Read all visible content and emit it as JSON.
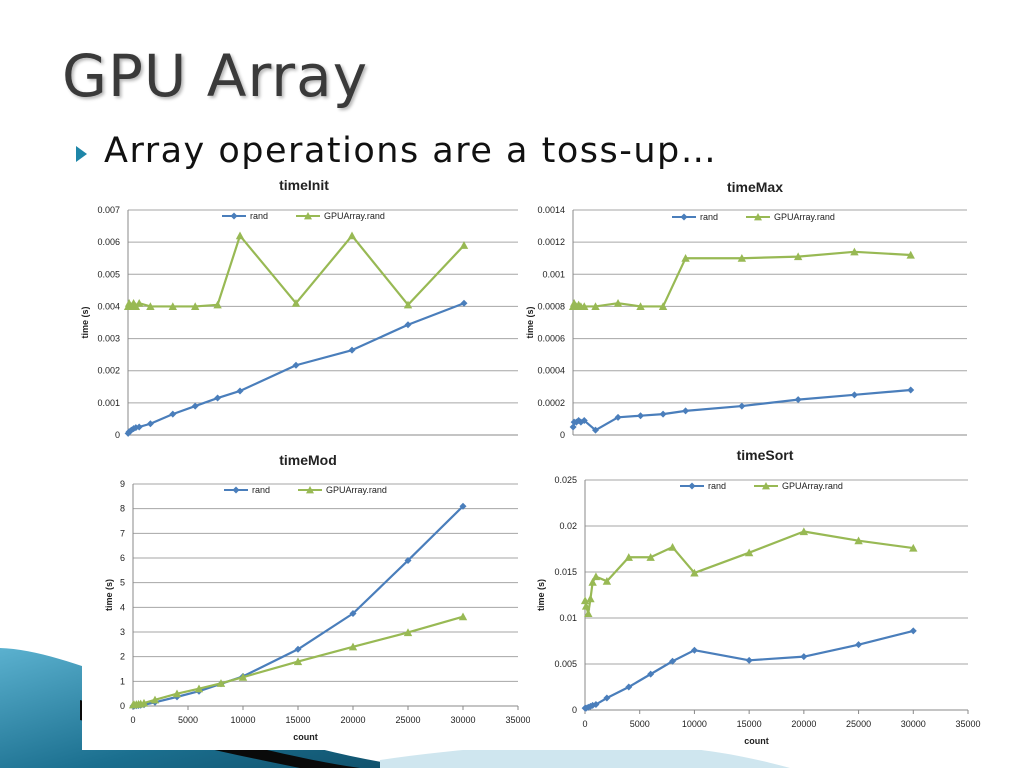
{
  "slide": {
    "title": "GPU Array",
    "bullet": "Array operations are a toss-up…"
  },
  "colors": {
    "rand": "#4a7ebb",
    "gpu": "#98b954",
    "grid": "#a6a6a6",
    "bullet": "#1e86a8",
    "decor_dark": "#10516b",
    "decor_light": "#5bb1cf"
  },
  "chart_data": [
    {
      "type": "line",
      "title": "timeInit",
      "xlabel": "",
      "ylabel": "time (s)",
      "ylim": [
        0,
        0.007
      ],
      "yticks": [
        "0",
        "0.001",
        "0.002",
        "0.003",
        "0.004",
        "0.005",
        "0.006",
        "0.007"
      ],
      "xlim": [
        0,
        35000
      ],
      "xticks": [],
      "grid": true,
      "legend": "top",
      "series": [
        {
          "name": "rand",
          "marker": "diamond",
          "x": [
            10,
            100,
            300,
            500,
            700,
            1000,
            2000,
            4000,
            6000,
            8000,
            10000,
            15000,
            20000,
            25000,
            30000
          ],
          "y": [
            5e-05,
            0.0001,
            0.00015,
            0.0002,
            0.00023,
            0.00025,
            0.00035,
            0.00065,
            0.0009,
            0.00115,
            0.00137,
            0.00217,
            0.00264,
            0.00343,
            0.0041
          ]
        },
        {
          "name": "GPUArray.rand",
          "marker": "triangle",
          "x": [
            10,
            100,
            300,
            500,
            700,
            1000,
            2000,
            4000,
            6000,
            8000,
            10000,
            15000,
            20000,
            25000,
            30000
          ],
          "y": [
            0.004,
            0.0041,
            0.004,
            0.0041,
            0.004,
            0.0041,
            0.004,
            0.004,
            0.004,
            0.00405,
            0.0062,
            0.0041,
            0.0062,
            0.00405,
            0.0059
          ]
        }
      ]
    },
    {
      "type": "line",
      "title": "timeMax",
      "xlabel": "",
      "ylabel": "time (s)",
      "ylim": [
        0,
        0.0014
      ],
      "yticks": [
        "0",
        "0.0002",
        "0.0004",
        "0.0006",
        "0.0008",
        "0.001",
        "0.0012",
        "0.0014"
      ],
      "xlim": [
        0,
        35000
      ],
      "xticks": [],
      "grid": true,
      "legend": "top",
      "series": [
        {
          "name": "rand",
          "marker": "diamond",
          "x": [
            10,
            100,
            300,
            500,
            700,
            1000,
            2000,
            4000,
            6000,
            8000,
            10000,
            15000,
            20000,
            25000,
            30000
          ],
          "y": [
            5e-05,
            8e-05,
            8e-05,
            9e-05,
            8e-05,
            9e-05,
            3e-05,
            0.00011,
            0.00012,
            0.00013,
            0.00015,
            0.00018,
            0.00022,
            0.00025,
            0.00028
          ]
        },
        {
          "name": "GPUArray.rand",
          "marker": "triangle",
          "x": [
            10,
            100,
            300,
            500,
            700,
            1000,
            2000,
            4000,
            6000,
            8000,
            10000,
            15000,
            20000,
            25000,
            30000
          ],
          "y": [
            0.0008,
            0.00082,
            0.0008,
            0.00081,
            0.0008,
            0.0008,
            0.0008,
            0.00082,
            0.0008,
            0.0008,
            0.0011,
            0.0011,
            0.00111,
            0.00114,
            0.00112
          ]
        }
      ]
    },
    {
      "type": "line",
      "title": "timeMod",
      "xlabel": "count",
      "ylabel": "time (s)",
      "ylim": [
        0,
        9
      ],
      "yticks": [
        "0",
        "1",
        "2",
        "3",
        "4",
        "5",
        "6",
        "7",
        "8",
        "9"
      ],
      "xlim": [
        0,
        35000
      ],
      "xticks": [
        "0",
        "5000",
        "10000",
        "15000",
        "20000",
        "25000",
        "30000",
        "35000"
      ],
      "grid": true,
      "legend": "top",
      "series": [
        {
          "name": "rand",
          "marker": "diamond",
          "x": [
            10,
            100,
            300,
            500,
            700,
            1000,
            2000,
            4000,
            6000,
            8000,
            10000,
            15000,
            20000,
            25000,
            30000
          ],
          "y": [
            0,
            0,
            0.01,
            0.02,
            0.03,
            0.05,
            0.15,
            0.37,
            0.6,
            0.9,
            1.2,
            2.3,
            3.75,
            5.9,
            8.1
          ]
        },
        {
          "name": "GPUArray.rand",
          "marker": "triangle",
          "x": [
            10,
            100,
            300,
            500,
            700,
            1000,
            2000,
            4000,
            6000,
            8000,
            10000,
            15000,
            20000,
            25000,
            30000
          ],
          "y": [
            0.05,
            0.06,
            0.07,
            0.08,
            0.09,
            0.12,
            0.25,
            0.5,
            0.7,
            0.92,
            1.17,
            1.8,
            2.4,
            2.98,
            3.62
          ]
        }
      ]
    },
    {
      "type": "line",
      "title": "timeSort",
      "xlabel": "count",
      "ylabel": "time (s)",
      "ylim": [
        0,
        0.025
      ],
      "yticks": [
        "0",
        "0.005",
        "0.01",
        "0.015",
        "0.02",
        "0.025"
      ],
      "xlim": [
        0,
        35000
      ],
      "xticks": [
        "0",
        "5000",
        "10000",
        "15000",
        "20000",
        "25000",
        "30000",
        "35000"
      ],
      "grid": true,
      "legend": "top",
      "series": [
        {
          "name": "rand",
          "marker": "diamond",
          "x": [
            10,
            100,
            300,
            500,
            700,
            1000,
            2000,
            4000,
            6000,
            8000,
            10000,
            15000,
            20000,
            25000,
            30000
          ],
          "y": [
            0.0002,
            0.0002,
            0.0003,
            0.0004,
            0.0005,
            0.0006,
            0.0013,
            0.0025,
            0.0039,
            0.0053,
            0.0065,
            0.0054,
            0.0058,
            0.0071,
            0.0086
          ]
        },
        {
          "name": "GPUArray.rand",
          "marker": "triangle",
          "x": [
            10,
            100,
            300,
            500,
            700,
            1000,
            2000,
            4000,
            6000,
            8000,
            10000,
            15000,
            20000,
            25000,
            30000
          ],
          "y": [
            0.0119,
            0.0113,
            0.0105,
            0.0121,
            0.0139,
            0.0145,
            0.014,
            0.0166,
            0.0166,
            0.0177,
            0.0149,
            0.0171,
            0.0194,
            0.0184,
            0.0176
          ]
        }
      ]
    }
  ]
}
